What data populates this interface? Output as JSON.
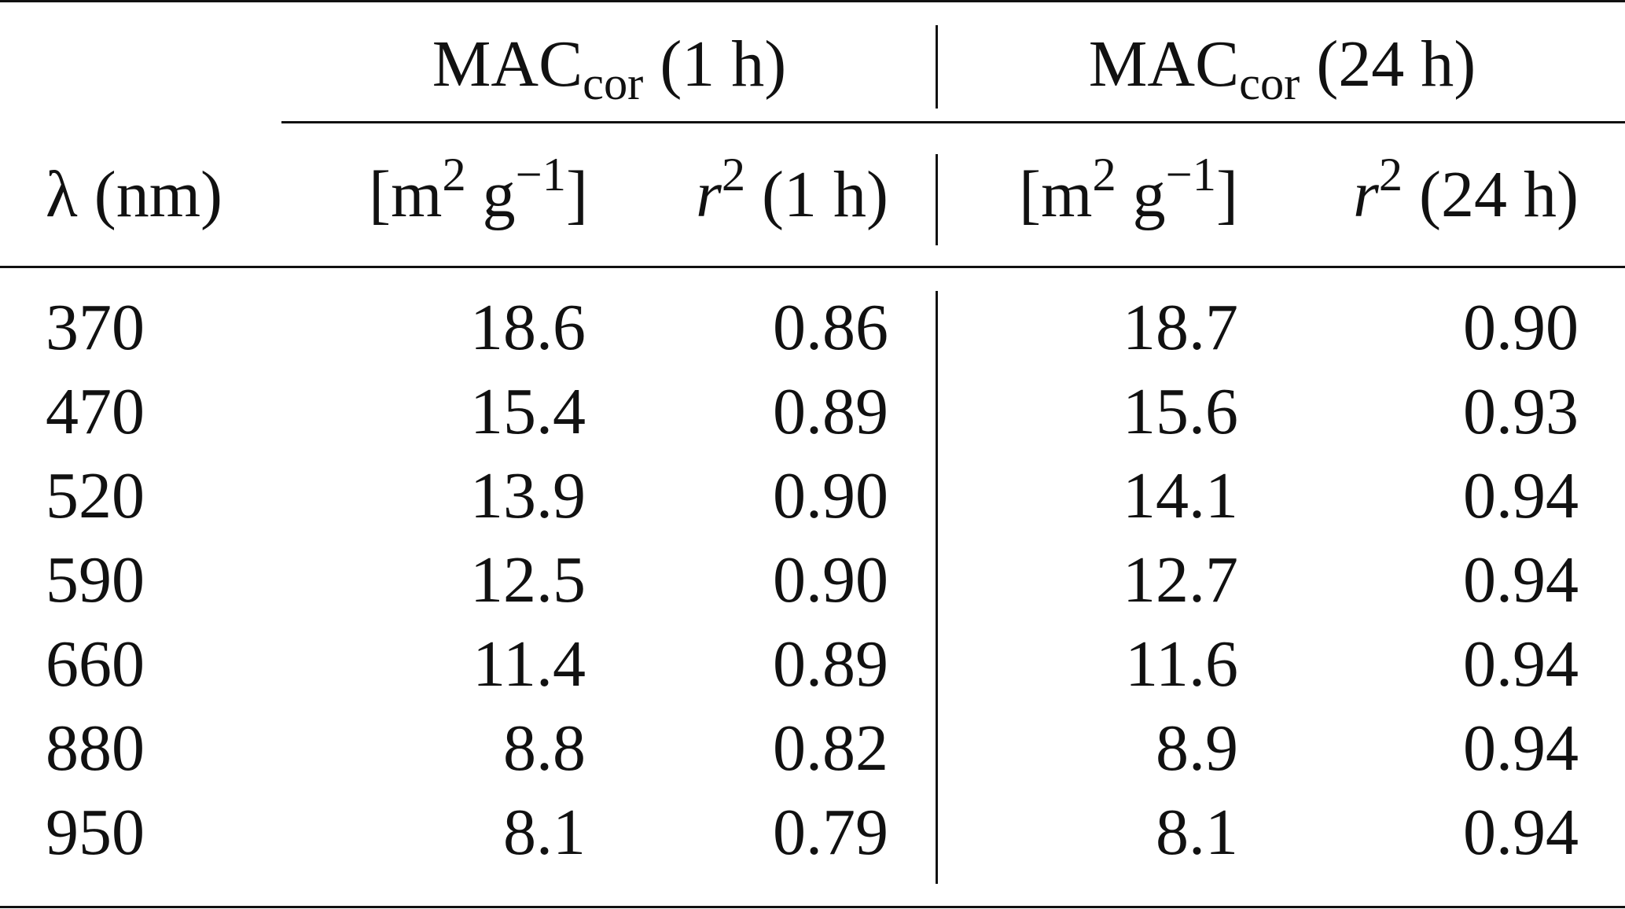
{
  "table": {
    "group_headers": [
      {
        "base": "MAC",
        "sub": "cor",
        "suffix": " (1 h)"
      },
      {
        "base": "MAC",
        "sub": "cor",
        "suffix": " (24 h)"
      }
    ],
    "col_headers": {
      "lambda": "λ (nm)",
      "mac_unit_left": "[m",
      "mac_unit_sup1": "2",
      "mac_unit_mid": " g",
      "mac_unit_sup2": "−1",
      "mac_unit_right": "]",
      "r2_var": "r",
      "r2_sup": "2",
      "r2_1h_suffix": " (1 h)",
      "r2_24h_suffix": " (24 h)"
    },
    "rows": [
      [
        "370",
        "18.6",
        "0.86",
        "18.7",
        "0.90"
      ],
      [
        "470",
        "15.4",
        "0.89",
        "15.6",
        "0.93"
      ],
      [
        "520",
        "13.9",
        "0.90",
        "14.1",
        "0.94"
      ],
      [
        "590",
        "12.5",
        "0.90",
        "12.7",
        "0.94"
      ],
      [
        "660",
        "11.4",
        "0.89",
        "11.6",
        "0.94"
      ],
      [
        "880",
        "8.8",
        "0.82",
        "8.9",
        "0.94"
      ],
      [
        "950",
        "8.1",
        "0.79",
        "8.1",
        "0.94"
      ]
    ]
  }
}
